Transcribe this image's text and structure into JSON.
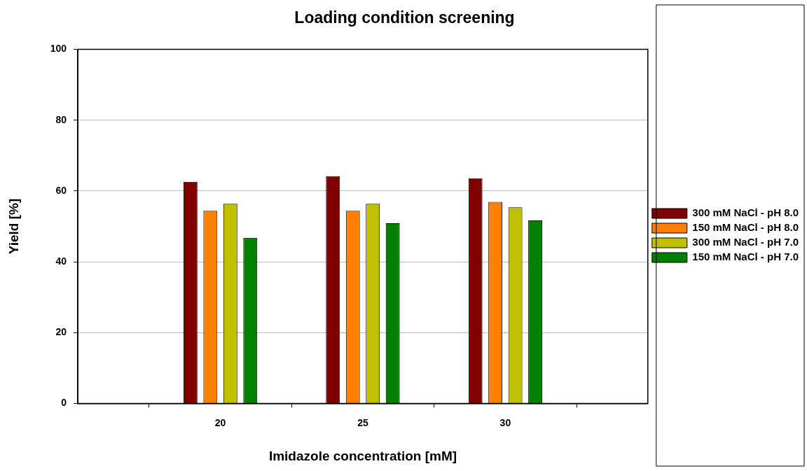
{
  "chart_data": {
    "type": "bar",
    "title": "Loading condition screening",
    "xlabel": "Imidazole concentration [mM]",
    "ylabel": "Yield [%]",
    "x": [
      20,
      25,
      30
    ],
    "xlim": [
      15,
      35
    ],
    "xticks": [
      20,
      25,
      30
    ],
    "ylim": [
      0,
      100
    ],
    "yticks": [
      0,
      20,
      40,
      60,
      80,
      100
    ],
    "grid": "y",
    "legend": "right",
    "series": [
      {
        "name": "300 mM NaCl - pH 8.0",
        "color": "#800000",
        "values": [
          62.6,
          64.2,
          63.6
        ]
      },
      {
        "name": "150 mM NaCl - pH 8.0",
        "color": "#ff8000",
        "values": [
          54.4,
          54.4,
          56.9
        ]
      },
      {
        "name": "300 mM NaCl - pH 7.0",
        "color": "#c0c000",
        "values": [
          56.4,
          56.4,
          55.4
        ]
      },
      {
        "name": "150 mM NaCl - pH 7.0",
        "color": "#008000",
        "values": [
          46.8,
          50.9,
          51.7
        ]
      }
    ]
  }
}
